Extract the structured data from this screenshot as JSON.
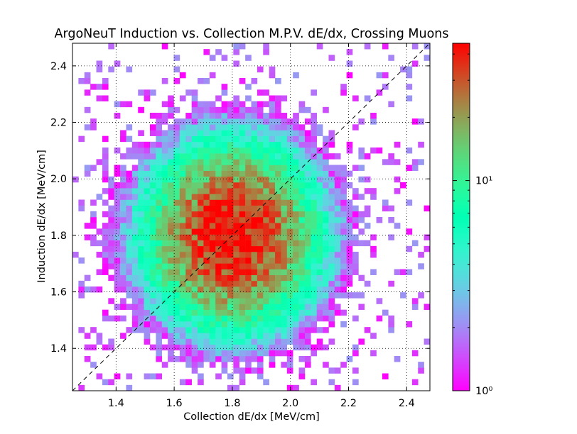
{
  "chart_data": {
    "type": "heatmap",
    "title": "ArgoNeuT Induction vs. Collection M.P.V. dE/dx, Crossing Muons",
    "xlabel": "Collection dE/dx [MeV/cm]",
    "ylabel": "Induction dE/dx [MeV/cm]",
    "xlim": [
      1.25,
      2.48
    ],
    "ylim": [
      1.25,
      2.48
    ],
    "bins": [
      60,
      60
    ],
    "x_ticks": [
      "1.4",
      "1.6",
      "1.8",
      "2.0",
      "2.2",
      "2.4"
    ],
    "y_ticks": [
      "1.4",
      "1.6",
      "1.8",
      "2.0",
      "2.2",
      "2.4"
    ],
    "grid": true,
    "reference_line": "y = x (dashed)",
    "distribution_center": [
      1.8,
      1.8
    ],
    "colorbar": {
      "scale": "log",
      "range": [
        1,
        45
      ],
      "colormap": "rainbow",
      "ticks": [
        {
          "value": 1,
          "label": "10⁰"
        },
        {
          "value": 10,
          "label": "10¹"
        }
      ]
    }
  }
}
